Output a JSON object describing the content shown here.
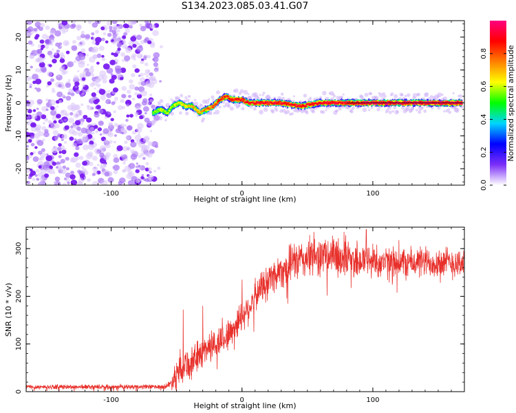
{
  "title": "S134.2023.085.03.41.G07",
  "chart_data": [
    {
      "type": "heatmap",
      "xlabel": "Height of straight line (km)",
      "ylabel": "Frequency (Hz)",
      "xlim": [
        -165,
        170
      ],
      "ylim": [
        -25,
        25
      ],
      "xticks": [
        -100,
        0,
        100
      ],
      "yticks": [
        -20,
        -10,
        0,
        10,
        20
      ],
      "noise_x_range": [
        -165,
        -65
      ],
      "ridge": {
        "x": [
          -68,
          -62,
          -57,
          -53,
          -48,
          -43,
          -38,
          -32,
          -27,
          -22,
          -17,
          -12,
          -8,
          -4,
          0,
          5,
          15,
          30,
          45,
          60,
          75,
          90,
          110,
          130,
          150,
          168
        ],
        "freq": [
          -3,
          -2,
          -3,
          -1,
          0,
          -1,
          -1,
          -3,
          -2,
          -1,
          1,
          2,
          1,
          1,
          1,
          0,
          0,
          0,
          -1,
          0,
          0,
          0,
          0,
          0,
          0,
          0
        ],
        "strength": [
          0.45,
          0.5,
          0.45,
          0.5,
          0.55,
          0.6,
          0.62,
          0.65,
          0.7,
          0.75,
          0.8,
          0.8,
          0.82,
          0.85,
          0.85,
          0.85,
          0.88,
          0.88,
          0.88,
          0.9,
          0.9,
          0.92,
          0.95,
          0.95,
          0.95,
          0.95
        ]
      },
      "colorbar": {
        "label": "Normalized spectral amplitude",
        "range": [
          0.0,
          1.0
        ],
        "ticks": [
          0.0,
          0.2,
          0.4,
          0.6,
          0.8
        ],
        "colormap": [
          "#ffffff",
          "#7b2ff7",
          "#0000ff",
          "#00d5ff",
          "#00ff00",
          "#ffff00",
          "#ff8000",
          "#ff0000",
          "#ff0080"
        ]
      }
    },
    {
      "type": "line",
      "xlabel": "Height of straight line (km)",
      "ylabel": "SNR (10 * v/v)",
      "xlim": [
        -165,
        170
      ],
      "ylim": [
        0,
        345
      ],
      "xticks": [
        -100,
        0,
        100
      ],
      "yticks": [
        0,
        100,
        200,
        300
      ],
      "series": [
        {
          "color": "#e8302b",
          "x": [
            -165,
            -140,
            -110,
            -80,
            -60,
            -55,
            -50,
            -45,
            -40,
            -35,
            -30,
            -25,
            -20,
            -15,
            -10,
            -5,
            0,
            5,
            10,
            15,
            20,
            25,
            30,
            40,
            50,
            60,
            70,
            80,
            90,
            100,
            110,
            120,
            130,
            140,
            150,
            160,
            170
          ],
          "mean": [
            10,
            10,
            10,
            10,
            10,
            15,
            40,
            60,
            55,
            70,
            85,
            95,
            100,
            110,
            120,
            140,
            160,
            175,
            200,
            220,
            235,
            245,
            255,
            270,
            280,
            285,
            285,
            280,
            275,
            275,
            270,
            270,
            270,
            272,
            272,
            270,
            270
          ],
          "spread": [
            6,
            6,
            6,
            6,
            6,
            10,
            45,
            45,
            40,
            40,
            40,
            40,
            40,
            40,
            40,
            40,
            40,
            40,
            40,
            40,
            45,
            45,
            45,
            50,
            50,
            50,
            50,
            50,
            50,
            45,
            40,
            40,
            40,
            40,
            40,
            40,
            40
          ],
          "peaks": [
            [
              -45,
              172
            ],
            [
              -30,
              180
            ],
            [
              -15,
              155
            ],
            [
              0,
              235
            ],
            [
              40,
              310
            ],
            [
              55,
              335
            ],
            [
              78,
              335
            ],
            [
              95,
              340
            ],
            [
              120,
              318
            ]
          ]
        }
      ]
    }
  ]
}
